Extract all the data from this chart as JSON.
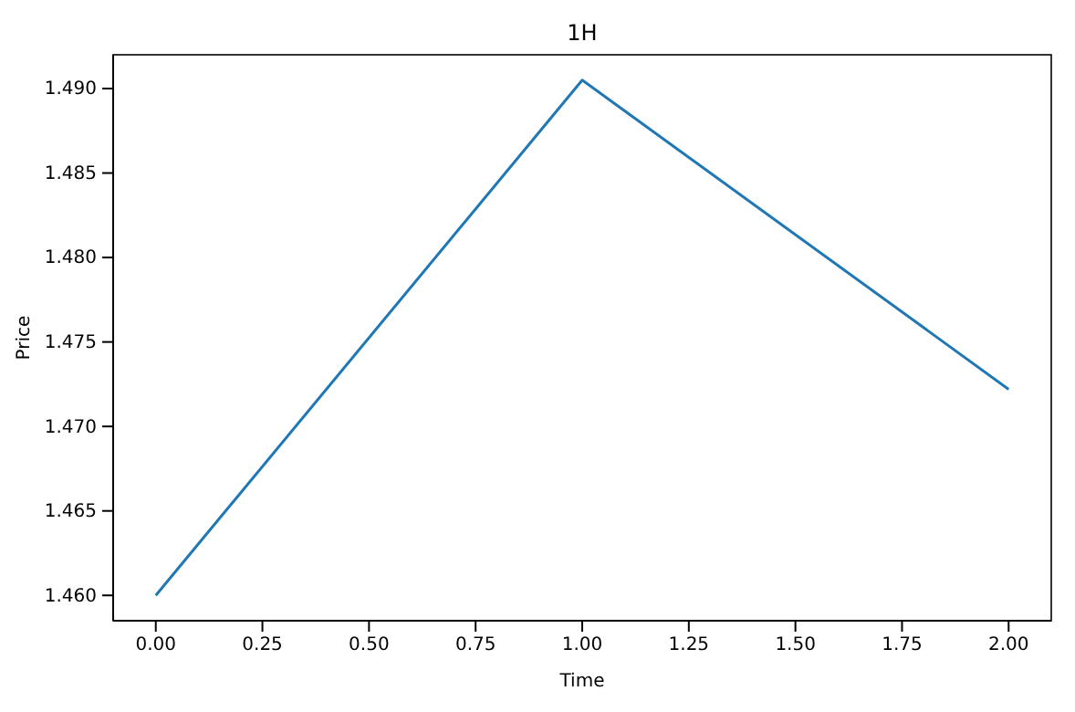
{
  "chart_data": {
    "type": "line",
    "title": "1H",
    "xlabel": "Time",
    "ylabel": "Price",
    "x": [
      0,
      1,
      2
    ],
    "series": [
      {
        "color": "#1f77b4",
        "values": [
          1.46,
          1.4905,
          1.4722
        ]
      }
    ],
    "xlim": [
      -0.1,
      2.1
    ],
    "xticks": [
      {
        "value": 0,
        "label": "0.00"
      },
      0.25,
      {
        "value": 0.5,
        "label": "0.50"
      },
      0.75,
      {
        "value": 1,
        "label": "1.00"
      },
      1.25,
      {
        "value": 1.5,
        "label": "1.50"
      },
      1.75,
      {
        "value": 2,
        "label": "2.00"
      }
    ],
    "ylim": [
      1.4585,
      1.492
    ],
    "yticks": [
      {
        "value": 1.46,
        "label": "1.460"
      },
      1.465,
      {
        "value": 1.47,
        "label": "1.470"
      },
      1.475,
      {
        "value": 1.48,
        "label": "1.480"
      },
      1.485,
      {
        "value": 1.49,
        "label": "1.490"
      }
    ],
    "grid": false,
    "marker": "none",
    "line_style": "solid"
  }
}
